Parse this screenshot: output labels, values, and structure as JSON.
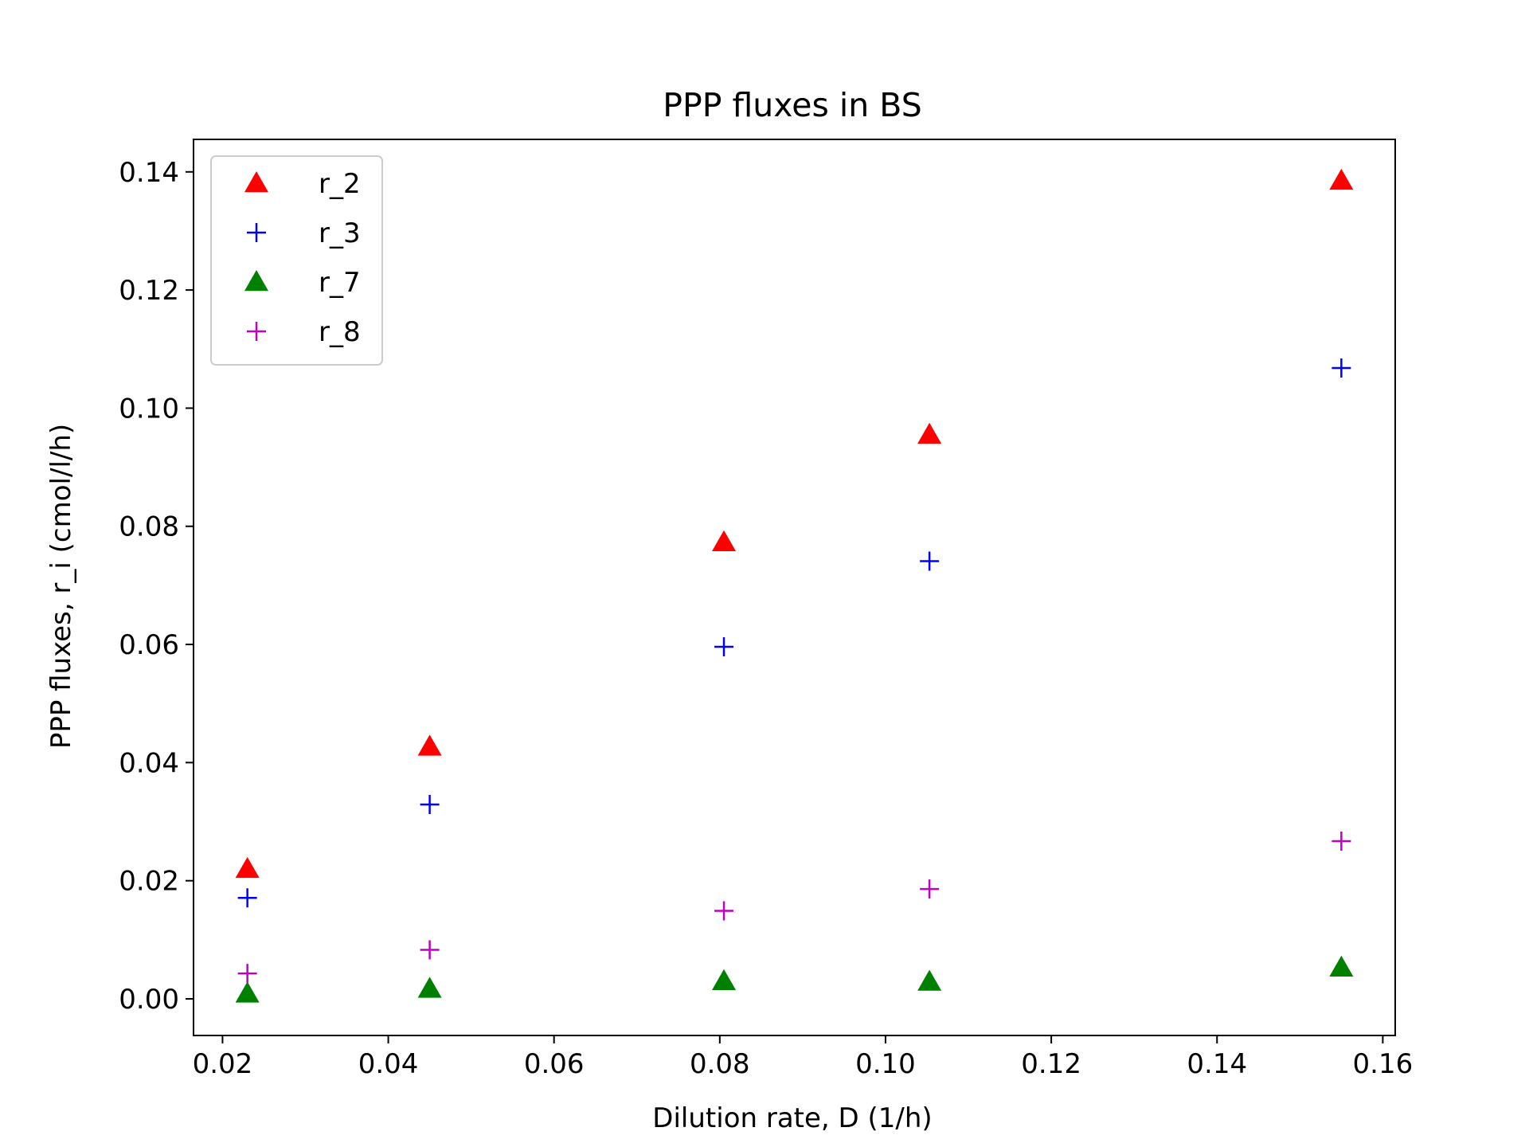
{
  "chart_data": {
    "type": "scatter",
    "title": "PPP fluxes in BS",
    "xlabel": "Dilution rate, D (1/h)",
    "ylabel": "PPP fluxes, r_i (cmol/l/h)",
    "xlim": [
      0.0165,
      0.1615
    ],
    "ylim": [
      -0.0062,
      0.1455
    ],
    "x_ticks": [
      "0.02",
      "0.04",
      "0.06",
      "0.08",
      "0.10",
      "0.12",
      "0.14",
      "0.16"
    ],
    "y_ticks": [
      "0.00",
      "0.02",
      "0.04",
      "0.06",
      "0.08",
      "0.10",
      "0.12",
      "0.14"
    ],
    "grid": false,
    "legend_position": "top-left",
    "series": [
      {
        "name": "r_2",
        "marker": "triangle",
        "color": "#ff0000",
        "x": [
          0.023,
          0.045,
          0.0805,
          0.1053,
          0.155
        ],
        "y": [
          0.022,
          0.0427,
          0.0773,
          0.0955,
          0.1385
        ]
      },
      {
        "name": "r_3",
        "marker": "plus",
        "color": "#0000ff",
        "x": [
          0.023,
          0.045,
          0.0805,
          0.1053,
          0.155
        ],
        "y": [
          0.0171,
          0.0329,
          0.0596,
          0.0741,
          0.1068
        ]
      },
      {
        "name": "r_7",
        "marker": "triangle",
        "color": "#008000",
        "x": [
          0.023,
          0.045,
          0.0805,
          0.1053,
          0.155
        ],
        "y": [
          0.0009,
          0.0017,
          0.003,
          0.0029,
          0.0053
        ]
      },
      {
        "name": "r_8",
        "marker": "plus",
        "color": "#c000c0",
        "x": [
          0.023,
          0.045,
          0.0805,
          0.1053,
          0.155
        ],
        "y": [
          0.0043,
          0.0083,
          0.0149,
          0.0186,
          0.0267
        ]
      }
    ]
  }
}
